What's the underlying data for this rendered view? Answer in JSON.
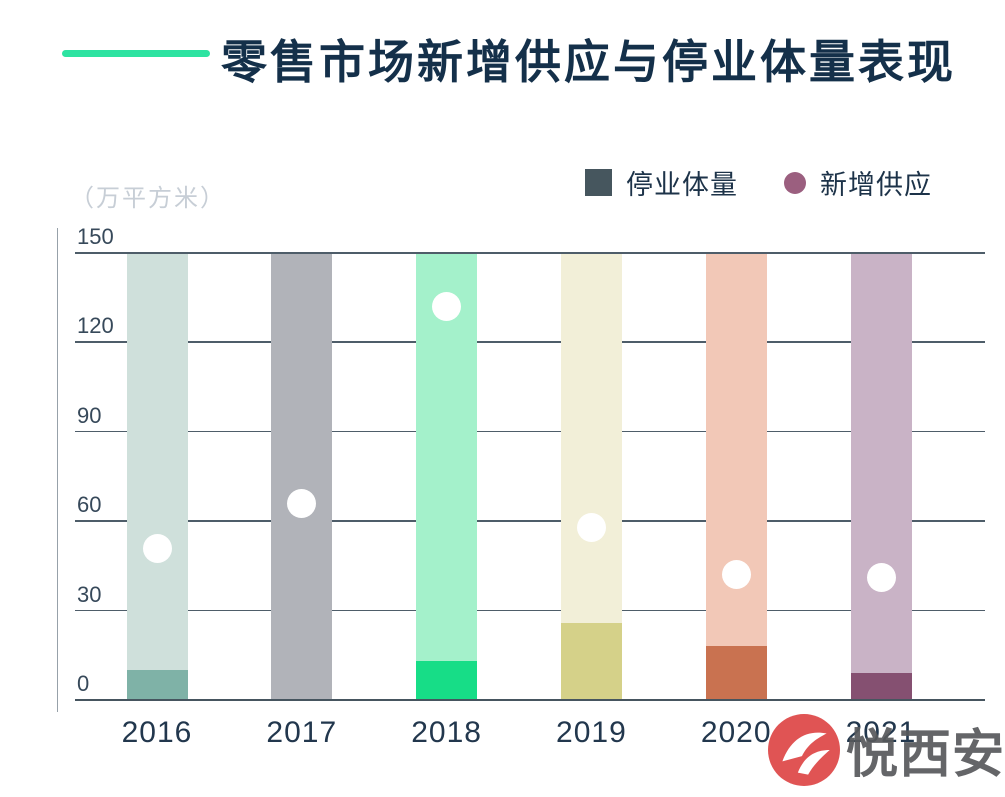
{
  "header": {
    "title": "零售市场新增供应与停业体量表现",
    "accent_line_color": "#2de3a1",
    "title_color": "#14304a"
  },
  "legend": {
    "items": [
      {
        "label": "停业体量",
        "marker": "square",
        "color": "#46565e"
      },
      {
        "label": "新增供应",
        "marker": "circle",
        "color": "#9b5f7f"
      }
    ]
  },
  "chart_data": {
    "type": "bar",
    "title": "零售市场新增供应与停业体量表现",
    "unit_label": "（万平方米）",
    "categories": [
      "2016",
      "2017",
      "2018",
      "2019",
      "2020",
      "2021"
    ],
    "series": [
      {
        "name": "停业体量",
        "type": "bar",
        "values": [
          10,
          0,
          13,
          26,
          18,
          9
        ]
      },
      {
        "name": "新增供应",
        "type": "point",
        "values": [
          51,
          66,
          132,
          58,
          42,
          41
        ]
      }
    ],
    "column_full_height": 150,
    "ylim": [
      0,
      150
    ],
    "yticks": [
      0,
      30,
      60,
      90,
      120,
      150
    ],
    "grid": true,
    "legend_position": "top-right",
    "column_colors_light": [
      "#cfe0db",
      "#b1b3b9",
      "#a4f1cb",
      "#f2efd8",
      "#f2c8b7",
      "#c9b3c6"
    ],
    "column_colors_dark": [
      "#7fb2a7",
      "#b1b3b9",
      "#17dd87",
      "#d5d189",
      "#c97250",
      "#855071"
    ],
    "point_color": "#ffffff",
    "grid_color": "#4e5d69"
  },
  "watermark": {
    "text": "悦西安",
    "badge_color": "#e05454",
    "text_color": "#57595c"
  }
}
